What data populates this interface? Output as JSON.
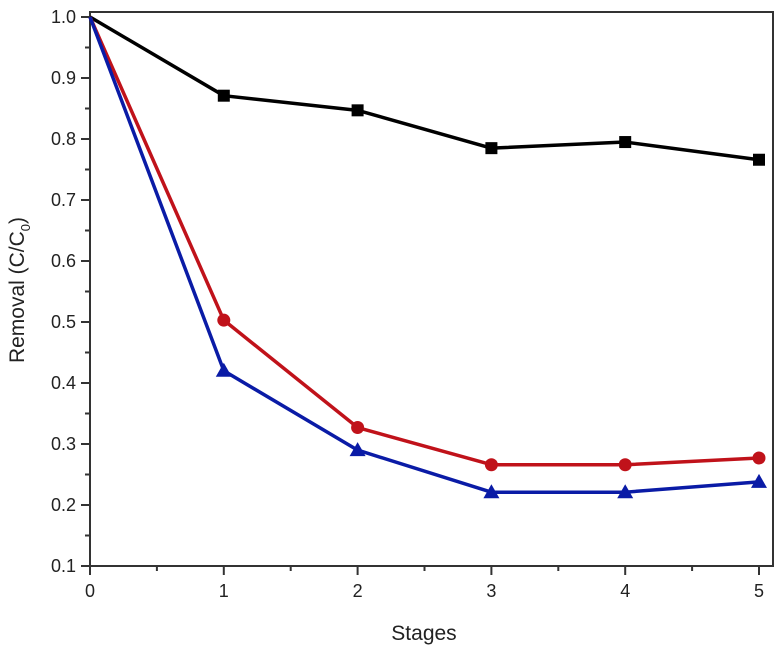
{
  "chart_data": {
    "type": "line",
    "title": "",
    "xlabel": "Stages",
    "ylabel": "Removal (C/C",
    "ylabel_sub": "0",
    "ylabel_end": ")",
    "xlim": [
      0,
      5
    ],
    "ylim": [
      0.1,
      1.0
    ],
    "x": [
      0,
      1,
      2,
      3,
      4,
      5
    ],
    "xticks": [
      "0",
      "1",
      "2",
      "3",
      "4",
      "5"
    ],
    "yticks": [
      "0.1",
      "0.2",
      "0.3",
      "0.4",
      "0.5",
      "0.6",
      "0.7",
      "0.8",
      "0.9",
      "1.0"
    ],
    "ytick_values": [
      0.1,
      0.2,
      0.3,
      0.4,
      0.5,
      0.6,
      0.7,
      0.8,
      0.9,
      1.0
    ],
    "grid": false,
    "series": [
      {
        "name": "black-square",
        "color": "#000000",
        "marker": "square",
        "values": [
          1.0,
          0.871,
          0.847,
          0.785,
          0.795,
          0.766
        ]
      },
      {
        "name": "red-circle",
        "color": "#c0121a",
        "marker": "circle",
        "values": [
          1.0,
          0.503,
          0.327,
          0.266,
          0.266,
          0.277
        ]
      },
      {
        "name": "blue-triangle",
        "color": "#0a1ba6",
        "marker": "triangle",
        "values": [
          1.0,
          0.42,
          0.29,
          0.221,
          0.221,
          0.238
        ]
      }
    ]
  }
}
